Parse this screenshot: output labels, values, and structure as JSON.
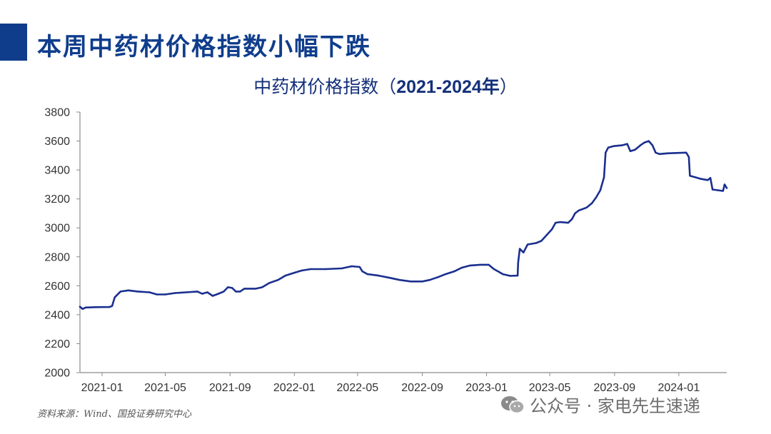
{
  "header": {
    "title": "本周中药材价格指数小幅下跌"
  },
  "chart_data": {
    "type": "line",
    "title_prefix": "中药材价格指数（",
    "title_bold": "2021-2024年",
    "title_suffix": "）",
    "xlabel": "",
    "ylabel": "",
    "ylim": [
      2000,
      3800
    ],
    "yticks": [
      2000,
      2200,
      2400,
      2600,
      2800,
      3000,
      3200,
      3400,
      3600,
      3800
    ],
    "xlim": [
      "2020-11-20",
      "2024-04-01"
    ],
    "xticks": [
      "2021-01",
      "2021-05",
      "2021-09",
      "2022-01",
      "2022-05",
      "2022-09",
      "2023-01",
      "2023-05",
      "2023-09",
      "2024-01"
    ],
    "grid": false,
    "line_color": "#1a2f8f",
    "series": [
      {
        "name": "",
        "points": [
          [
            "2020-11-20",
            2455
          ],
          [
            "2020-11-25",
            2440
          ],
          [
            "2020-12-01",
            2450
          ],
          [
            "2020-12-20",
            2452
          ],
          [
            "2021-01-15",
            2453
          ],
          [
            "2021-01-20",
            2460
          ],
          [
            "2021-01-25",
            2520
          ],
          [
            "2021-02-05",
            2560
          ],
          [
            "2021-02-20",
            2568
          ],
          [
            "2021-03-10",
            2560
          ],
          [
            "2021-04-01",
            2555
          ],
          [
            "2021-04-15",
            2540
          ],
          [
            "2021-05-01",
            2540
          ],
          [
            "2021-05-20",
            2550
          ],
          [
            "2021-06-10",
            2555
          ],
          [
            "2021-07-01",
            2560
          ],
          [
            "2021-07-10",
            2545
          ],
          [
            "2021-07-20",
            2555
          ],
          [
            "2021-07-30",
            2530
          ],
          [
            "2021-08-10",
            2545
          ],
          [
            "2021-08-20",
            2560
          ],
          [
            "2021-08-28",
            2590
          ],
          [
            "2021-09-05",
            2585
          ],
          [
            "2021-09-12",
            2560
          ],
          [
            "2021-09-20",
            2560
          ],
          [
            "2021-09-28",
            2580
          ],
          [
            "2021-10-20",
            2580
          ],
          [
            "2021-11-01",
            2590
          ],
          [
            "2021-11-15",
            2620
          ],
          [
            "2021-12-01",
            2640
          ],
          [
            "2021-12-15",
            2670
          ],
          [
            "2022-01-01",
            2690
          ],
          [
            "2022-01-15",
            2705
          ],
          [
            "2022-02-01",
            2715
          ],
          [
            "2022-03-01",
            2715
          ],
          [
            "2022-04-01",
            2720
          ],
          [
            "2022-04-20",
            2735
          ],
          [
            "2022-05-05",
            2730
          ],
          [
            "2022-05-10",
            2700
          ],
          [
            "2022-05-20",
            2680
          ],
          [
            "2022-06-10",
            2670
          ],
          [
            "2022-07-01",
            2655
          ],
          [
            "2022-07-20",
            2640
          ],
          [
            "2022-08-10",
            2630
          ],
          [
            "2022-09-01",
            2630
          ],
          [
            "2022-09-15",
            2640
          ],
          [
            "2022-10-01",
            2660
          ],
          [
            "2022-10-15",
            2680
          ],
          [
            "2022-11-01",
            2700
          ],
          [
            "2022-11-15",
            2725
          ],
          [
            "2022-12-01",
            2740
          ],
          [
            "2022-12-20",
            2745
          ],
          [
            "2023-01-05",
            2745
          ],
          [
            "2023-01-15",
            2715
          ],
          [
            "2023-01-25",
            2695
          ],
          [
            "2023-02-01",
            2680
          ],
          [
            "2023-02-15",
            2668
          ],
          [
            "2023-03-01",
            2670
          ],
          [
            "2023-03-02",
            2760
          ],
          [
            "2023-03-05",
            2855
          ],
          [
            "2023-03-12",
            2830
          ],
          [
            "2023-03-20",
            2885
          ],
          [
            "2023-04-05",
            2895
          ],
          [
            "2023-04-15",
            2910
          ],
          [
            "2023-04-25",
            2950
          ],
          [
            "2023-05-05",
            2990
          ],
          [
            "2023-05-12",
            3035
          ],
          [
            "2023-05-20",
            3040
          ],
          [
            "2023-06-05",
            3035
          ],
          [
            "2023-06-12",
            3060
          ],
          [
            "2023-06-18",
            3100
          ],
          [
            "2023-06-25",
            3120
          ],
          [
            "2023-07-10",
            3140
          ],
          [
            "2023-07-20",
            3170
          ],
          [
            "2023-07-28",
            3210
          ],
          [
            "2023-08-05",
            3260
          ],
          [
            "2023-08-12",
            3350
          ],
          [
            "2023-08-15",
            3520
          ],
          [
            "2023-08-20",
            3555
          ],
          [
            "2023-08-30",
            3565
          ],
          [
            "2023-09-15",
            3570
          ],
          [
            "2023-09-25",
            3580
          ],
          [
            "2023-10-01",
            3530
          ],
          [
            "2023-10-10",
            3540
          ],
          [
            "2023-10-20",
            3570
          ],
          [
            "2023-10-28",
            3590
          ],
          [
            "2023-11-05",
            3600
          ],
          [
            "2023-11-12",
            3570
          ],
          [
            "2023-11-18",
            3520
          ],
          [
            "2023-11-25",
            3510
          ],
          [
            "2023-12-10",
            3515
          ],
          [
            "2024-01-15",
            3520
          ],
          [
            "2024-01-20",
            3490
          ],
          [
            "2024-01-22",
            3360
          ],
          [
            "2024-02-01",
            3350
          ],
          [
            "2024-02-10",
            3340
          ],
          [
            "2024-02-25",
            3330
          ],
          [
            "2024-03-01",
            3345
          ],
          [
            "2024-03-05",
            3265
          ],
          [
            "2024-03-15",
            3260
          ],
          [
            "2024-03-25",
            3255
          ],
          [
            "2024-03-28",
            3300
          ],
          [
            "2024-04-01",
            3275
          ]
        ]
      }
    ]
  },
  "footer": {
    "source": "资料来源：Wind、国投证券研究中心",
    "watermark": "公众号 · 家电先生速递",
    "watermark_icon": "wechat-icon"
  }
}
